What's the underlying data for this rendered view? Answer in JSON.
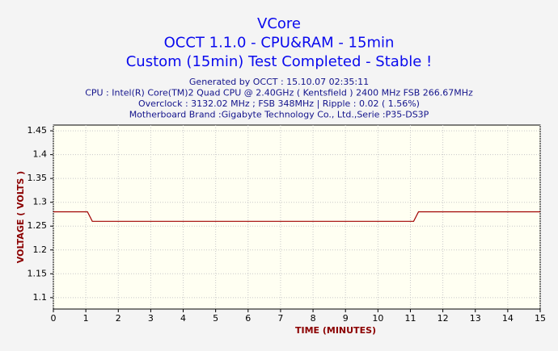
{
  "chart_data": {
    "type": "line",
    "title": [
      "VCore",
      "OCCT 1.1.0 - CPU&RAM - 15min",
      "Custom (15min) Test Completed - Stable !"
    ],
    "info": [
      "Generated by OCCT : 15.10.07 02:35:11",
      "CPU : Intel(R) Core(TM)2 Quad CPU           @ 2.40GHz ( Kentsfield ) 2400 MHz FSB 266.67MHz",
      "Overclock : 3132.02 MHz ; FSB 348MHz | Ripple : 0.02 ( 1.56%)",
      "Motherboard Brand :Gigabyte Technology Co., Ltd.,Serie :P35-DS3P"
    ],
    "x_label": "TIME (MINUTES)",
    "y_label": "VOLTAGE ( VOLTS )",
    "x": [
      0,
      1.05,
      1.2,
      11.1,
      11.25,
      15
    ],
    "series": [
      {
        "color": "#a00000",
        "values": [
          1.28,
          1.28,
          1.26,
          1.26,
          1.28,
          1.28
        ]
      }
    ],
    "xlim": [
      0,
      15
    ],
    "xticks": [
      0,
      1,
      2,
      3,
      4,
      5,
      6,
      7,
      8,
      9,
      10,
      11,
      12,
      13,
      14,
      15
    ],
    "ylim": [
      1.076,
      1.462
    ],
    "yticks": [
      1.1,
      1.15,
      1.2,
      1.25,
      1.3,
      1.35,
      1.4,
      1.45
    ],
    "grid": true
  }
}
